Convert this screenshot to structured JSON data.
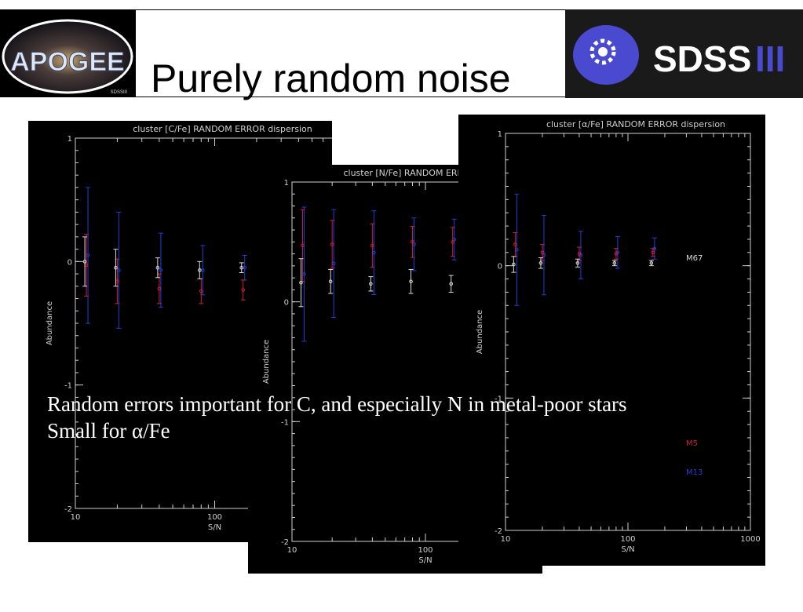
{
  "slide": {
    "title": "Purely random noise",
    "caption_lines": [
      "Random errors important for C, and especially N in metal-poor stars",
      "Small for α/Fe"
    ]
  },
  "logos": {
    "left_text": "APOGEE",
    "left_subtext": "SDSSIII",
    "right_text": "SDSS",
    "right_suffix": "III"
  },
  "colors": {
    "m67": "#d9d9d9",
    "m5": "#cc1f3a",
    "m13": "#1f3fd9",
    "axis": "#cfcfcf",
    "sdss_blue": "#4a4ad0"
  },
  "chart_data": [
    {
      "type": "scatter",
      "title": "cluster [C/Fe] RANDOM ERROR dispersion",
      "xlabel": "S/N",
      "ylabel": "Abundance",
      "xscale": "log",
      "xlim": [
        10,
        1000
      ],
      "ylim": [
        -2,
        1
      ],
      "yticks": [
        1,
        0,
        -1,
        -2
      ],
      "xtick_labels": [
        "10",
        "100"
      ],
      "series": [
        {
          "color": "m67",
          "x": [
            12,
            20,
            40,
            80,
            160
          ],
          "y": [
            0.0,
            -0.05,
            -0.05,
            -0.07,
            -0.05
          ],
          "err": [
            0.2,
            0.15,
            0.08,
            0.07,
            0.04
          ]
        },
        {
          "color": "m5",
          "x": [
            12,
            20,
            40,
            80,
            160
          ],
          "y": [
            -0.03,
            -0.16,
            -0.22,
            -0.24,
            -0.23
          ],
          "err": [
            0.25,
            0.18,
            0.12,
            0.1,
            0.08
          ]
        },
        {
          "color": "m13",
          "x": [
            12,
            20,
            40,
            80,
            160
          ],
          "y": [
            0.05,
            -0.07,
            -0.07,
            -0.07,
            -0.05
          ],
          "err": [
            0.55,
            0.47,
            0.3,
            0.2,
            0.1
          ]
        }
      ]
    },
    {
      "type": "scatter",
      "title": "cluster [N/Fe] RANDOM ERROR dispersion",
      "xlabel": "S/N",
      "ylabel": "Abundance",
      "xscale": "log",
      "xlim": [
        10,
        1000
      ],
      "ylim": [
        -2,
        1
      ],
      "yticks": [
        1,
        0,
        -1,
        -2
      ],
      "xtick_labels": [
        "10",
        "100"
      ],
      "series": [
        {
          "color": "m67",
          "x": [
            12,
            20,
            40,
            80,
            160
          ],
          "y": [
            0.16,
            0.17,
            0.15,
            0.17,
            0.15
          ],
          "err": [
            0.2,
            0.1,
            0.06,
            0.1,
            0.07
          ]
        },
        {
          "color": "m5",
          "x": [
            12,
            20,
            40,
            80,
            160
          ],
          "y": [
            0.47,
            0.48,
            0.47,
            0.5,
            0.5
          ],
          "err": [
            0.3,
            0.2,
            0.18,
            0.13,
            0.12
          ]
        },
        {
          "color": "m13",
          "x": [
            12,
            20,
            40,
            80,
            160
          ],
          "y": [
            0.23,
            0.32,
            0.41,
            0.48,
            0.52
          ],
          "err": [
            0.56,
            0.45,
            0.35,
            0.22,
            0.17
          ]
        }
      ]
    },
    {
      "type": "scatter",
      "title": "cluster [α/Fe] RANDOM ERROR dispersion",
      "xlabel": "S/N",
      "ylabel": "Abundance",
      "xscale": "log",
      "xlim": [
        10,
        1000
      ],
      "ylim": [
        -2,
        1
      ],
      "yticks": [
        1,
        0,
        -1,
        -2
      ],
      "xtick_labels": [
        "10",
        "100",
        "1000"
      ],
      "legend": [
        "M67",
        "M5",
        "M13"
      ],
      "series": [
        {
          "color": "m67",
          "x": [
            12,
            20,
            40,
            80,
            160
          ],
          "y": [
            0.01,
            0.02,
            0.02,
            0.02,
            0.02
          ],
          "err": [
            0.06,
            0.04,
            0.03,
            0.02,
            0.02
          ]
        },
        {
          "color": "m5",
          "x": [
            12,
            20,
            40,
            80,
            160
          ],
          "y": [
            0.16,
            0.1,
            0.09,
            0.09,
            0.1
          ],
          "err": [
            0.09,
            0.06,
            0.05,
            0.04,
            0.03
          ]
        },
        {
          "color": "m13",
          "x": [
            12,
            20,
            40,
            80,
            160
          ],
          "y": [
            0.12,
            0.08,
            0.08,
            0.1,
            0.13
          ],
          "err": [
            0.42,
            0.3,
            0.18,
            0.12,
            0.08
          ]
        }
      ]
    }
  ]
}
